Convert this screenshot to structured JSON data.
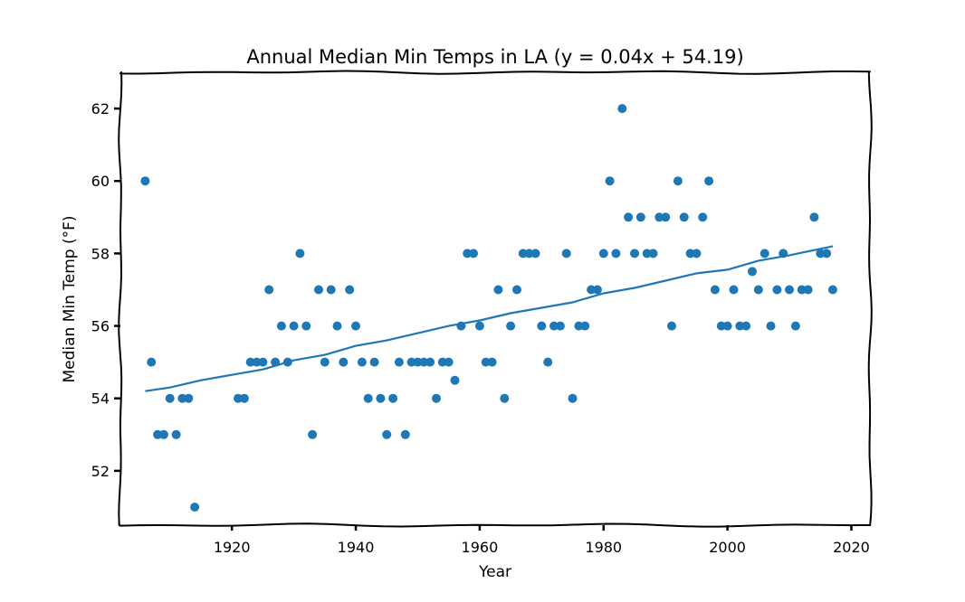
{
  "chart_data": {
    "type": "scatter",
    "title": "Annual Median Min Temps in LA (y = 0.04x + 54.19)",
    "xlabel": "Year",
    "ylabel": "Median Min Temp (°F)",
    "xlim": [
      1902,
      2023
    ],
    "ylim": [
      50.5,
      63.0
    ],
    "xticks": [
      1920,
      1940,
      1960,
      1980,
      2000,
      2020
    ],
    "yticks": [
      52,
      54,
      56,
      58,
      60,
      62
    ],
    "grid": false,
    "color": "#1f77b4",
    "series": [
      {
        "type": "scatter",
        "points": [
          [
            1906,
            60
          ],
          [
            1907,
            55
          ],
          [
            1908,
            53
          ],
          [
            1909,
            53
          ],
          [
            1910,
            54
          ],
          [
            1911,
            53
          ],
          [
            1912,
            54
          ],
          [
            1913,
            54
          ],
          [
            1914,
            51
          ],
          [
            1921,
            54
          ],
          [
            1922,
            54
          ],
          [
            1923,
            55
          ],
          [
            1924,
            55
          ],
          [
            1925,
            55
          ],
          [
            1926,
            57
          ],
          [
            1927,
            55
          ],
          [
            1928,
            56
          ],
          [
            1929,
            55
          ],
          [
            1930,
            56
          ],
          [
            1931,
            58
          ],
          [
            1932,
            56
          ],
          [
            1933,
            53
          ],
          [
            1934,
            57
          ],
          [
            1935,
            55
          ],
          [
            1936,
            57
          ],
          [
            1937,
            56
          ],
          [
            1938,
            55
          ],
          [
            1939,
            57
          ],
          [
            1940,
            56
          ],
          [
            1941,
            55
          ],
          [
            1942,
            54
          ],
          [
            1943,
            55
          ],
          [
            1944,
            54
          ],
          [
            1945,
            53
          ],
          [
            1946,
            54
          ],
          [
            1947,
            55
          ],
          [
            1948,
            53
          ],
          [
            1949,
            55
          ],
          [
            1950,
            55
          ],
          [
            1951,
            55
          ],
          [
            1952,
            55
          ],
          [
            1953,
            54
          ],
          [
            1954,
            55
          ],
          [
            1955,
            55
          ],
          [
            1956,
            54.5
          ],
          [
            1957,
            56
          ],
          [
            1958,
            58
          ],
          [
            1959,
            58
          ],
          [
            1960,
            56
          ],
          [
            1961,
            55
          ],
          [
            1962,
            55
          ],
          [
            1963,
            57
          ],
          [
            1964,
            54
          ],
          [
            1965,
            56
          ],
          [
            1966,
            57
          ],
          [
            1967,
            58
          ],
          [
            1968,
            58
          ],
          [
            1969,
            58
          ],
          [
            1970,
            56
          ],
          [
            1971,
            55
          ],
          [
            1972,
            56
          ],
          [
            1973,
            56
          ],
          [
            1974,
            58
          ],
          [
            1975,
            54
          ],
          [
            1976,
            56
          ],
          [
            1977,
            56
          ],
          [
            1978,
            57
          ],
          [
            1979,
            57
          ],
          [
            1980,
            58
          ],
          [
            1981,
            60
          ],
          [
            1982,
            58
          ],
          [
            1983,
            62
          ],
          [
            1984,
            59
          ],
          [
            1985,
            58
          ],
          [
            1986,
            59
          ],
          [
            1987,
            58
          ],
          [
            1988,
            58
          ],
          [
            1989,
            59
          ],
          [
            1990,
            59
          ],
          [
            1991,
            56
          ],
          [
            1992,
            60
          ],
          [
            1993,
            59
          ],
          [
            1994,
            58
          ],
          [
            1995,
            58
          ],
          [
            1996,
            59
          ],
          [
            1997,
            60
          ],
          [
            1998,
            57
          ],
          [
            1999,
            56
          ],
          [
            2000,
            56
          ],
          [
            2001,
            57
          ],
          [
            2002,
            56
          ],
          [
            2003,
            56
          ],
          [
            2004,
            57.5
          ],
          [
            2005,
            57
          ],
          [
            2006,
            58
          ],
          [
            2007,
            56
          ],
          [
            2008,
            57
          ],
          [
            2009,
            58
          ],
          [
            2010,
            57
          ],
          [
            2011,
            56
          ],
          [
            2012,
            57
          ],
          [
            2013,
            57
          ],
          [
            2014,
            59
          ],
          [
            2015,
            58
          ],
          [
            2016,
            58
          ],
          [
            2017,
            57
          ]
        ]
      },
      {
        "type": "line",
        "points": [
          [
            1906,
            54.2
          ],
          [
            1910,
            54.3
          ],
          [
            1915,
            54.5
          ],
          [
            1920,
            54.65
          ],
          [
            1925,
            54.8
          ],
          [
            1930,
            55.05
          ],
          [
            1935,
            55.2
          ],
          [
            1940,
            55.45
          ],
          [
            1945,
            55.6
          ],
          [
            1950,
            55.8
          ],
          [
            1955,
            56.0
          ],
          [
            1960,
            56.15
          ],
          [
            1965,
            56.35
          ],
          [
            1970,
            56.5
          ],
          [
            1975,
            56.65
          ],
          [
            1980,
            56.9
          ],
          [
            1985,
            57.05
          ],
          [
            1990,
            57.25
          ],
          [
            1995,
            57.45
          ],
          [
            2000,
            57.55
          ],
          [
            2005,
            57.8
          ],
          [
            2010,
            57.95
          ],
          [
            2017,
            58.2
          ]
        ]
      }
    ]
  }
}
